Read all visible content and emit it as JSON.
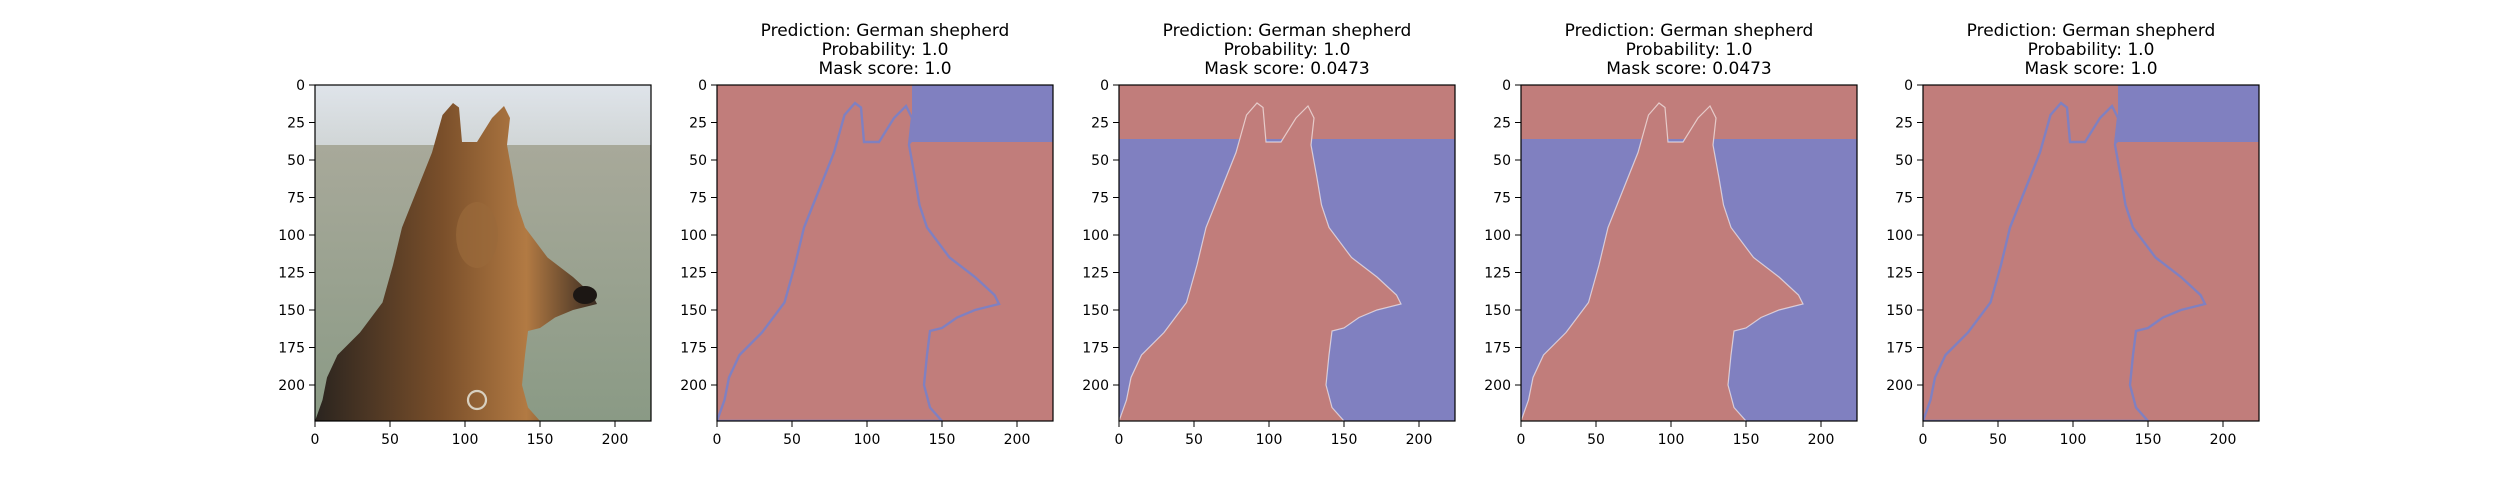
{
  "figure": {
    "background": "#ffffff",
    "panel_fill_colors": {
      "foreground": "#c17d7b",
      "background": "#8080c0"
    }
  },
  "chart_data": [
    {
      "type": "image",
      "image": "german-shepherd-photo",
      "title_lines": [],
      "xlim": [
        0,
        224
      ],
      "ylim": [
        224,
        0
      ],
      "xticks": [
        0,
        50,
        100,
        150,
        200
      ],
      "yticks": [
        0,
        25,
        50,
        75,
        100,
        125,
        150,
        175,
        200
      ],
      "grid": false
    },
    {
      "type": "heatmap",
      "mask": "background-excluding-dog-top-right",
      "title_lines": [
        "Prediction: German shepherd",
        "Probability: 1.0",
        "Mask score: 1.0"
      ],
      "xlim": [
        0,
        224
      ],
      "ylim": [
        224,
        0
      ],
      "xticks": [
        0,
        50,
        100,
        150,
        200
      ],
      "yticks": [
        0,
        25,
        50,
        75,
        100,
        125,
        150,
        175,
        200
      ],
      "grid": false
    },
    {
      "type": "heatmap",
      "mask": "dog-plus-top-band",
      "title_lines": [
        "Prediction: German shepherd",
        "Probability: 1.0",
        "Mask score: 0.0473"
      ],
      "xlim": [
        0,
        224
      ],
      "ylim": [
        224,
        0
      ],
      "xticks": [
        0,
        50,
        100,
        150,
        200
      ],
      "yticks": [
        0,
        25,
        50,
        75,
        100,
        125,
        150,
        175,
        200
      ],
      "grid": false
    },
    {
      "type": "heatmap",
      "mask": "dog-plus-top-band",
      "title_lines": [
        "Prediction: German shepherd",
        "Probability: 1.0",
        "Mask score: 0.0473"
      ],
      "xlim": [
        0,
        224
      ],
      "ylim": [
        224,
        0
      ],
      "xticks": [
        0,
        50,
        100,
        150,
        200
      ],
      "yticks": [
        0,
        25,
        50,
        75,
        100,
        125,
        150,
        175,
        200
      ],
      "grid": false
    },
    {
      "type": "heatmap",
      "mask": "background-excluding-dog-top-right",
      "title_lines": [
        "Prediction: German shepherd",
        "Probability: 1.0",
        "Mask score: 1.0"
      ],
      "xlim": [
        0,
        224
      ],
      "ylim": [
        224,
        0
      ],
      "xticks": [
        0,
        50,
        100,
        150,
        200
      ],
      "yticks": [
        0,
        25,
        50,
        75,
        100,
        125,
        150,
        175,
        200
      ],
      "grid": false
    }
  ]
}
